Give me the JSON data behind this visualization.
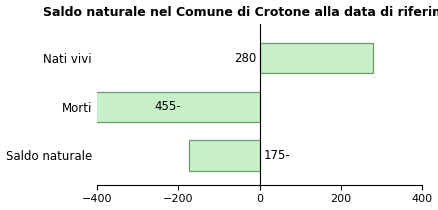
{
  "title": "Saldo naturale nel Comune di Crotone alla data di riferimento",
  "categories": [
    "Nati vivi",
    "Morti",
    "Saldo naturale"
  ],
  "values": [
    280,
    -455,
    -175
  ],
  "bar_labels": [
    "280",
    "455-",
    "175-"
  ],
  "bar_color": "#c8f0c8",
  "bar_edgecolor": "#6a9a6a",
  "xlim": [
    -400,
    400
  ],
  "xticks": [
    -400,
    -200,
    0,
    200,
    400
  ],
  "background_color": "#ffffff",
  "title_fontsize": 9,
  "label_fontsize": 8.5,
  "tick_fontsize": 8,
  "bar_height": 0.62
}
